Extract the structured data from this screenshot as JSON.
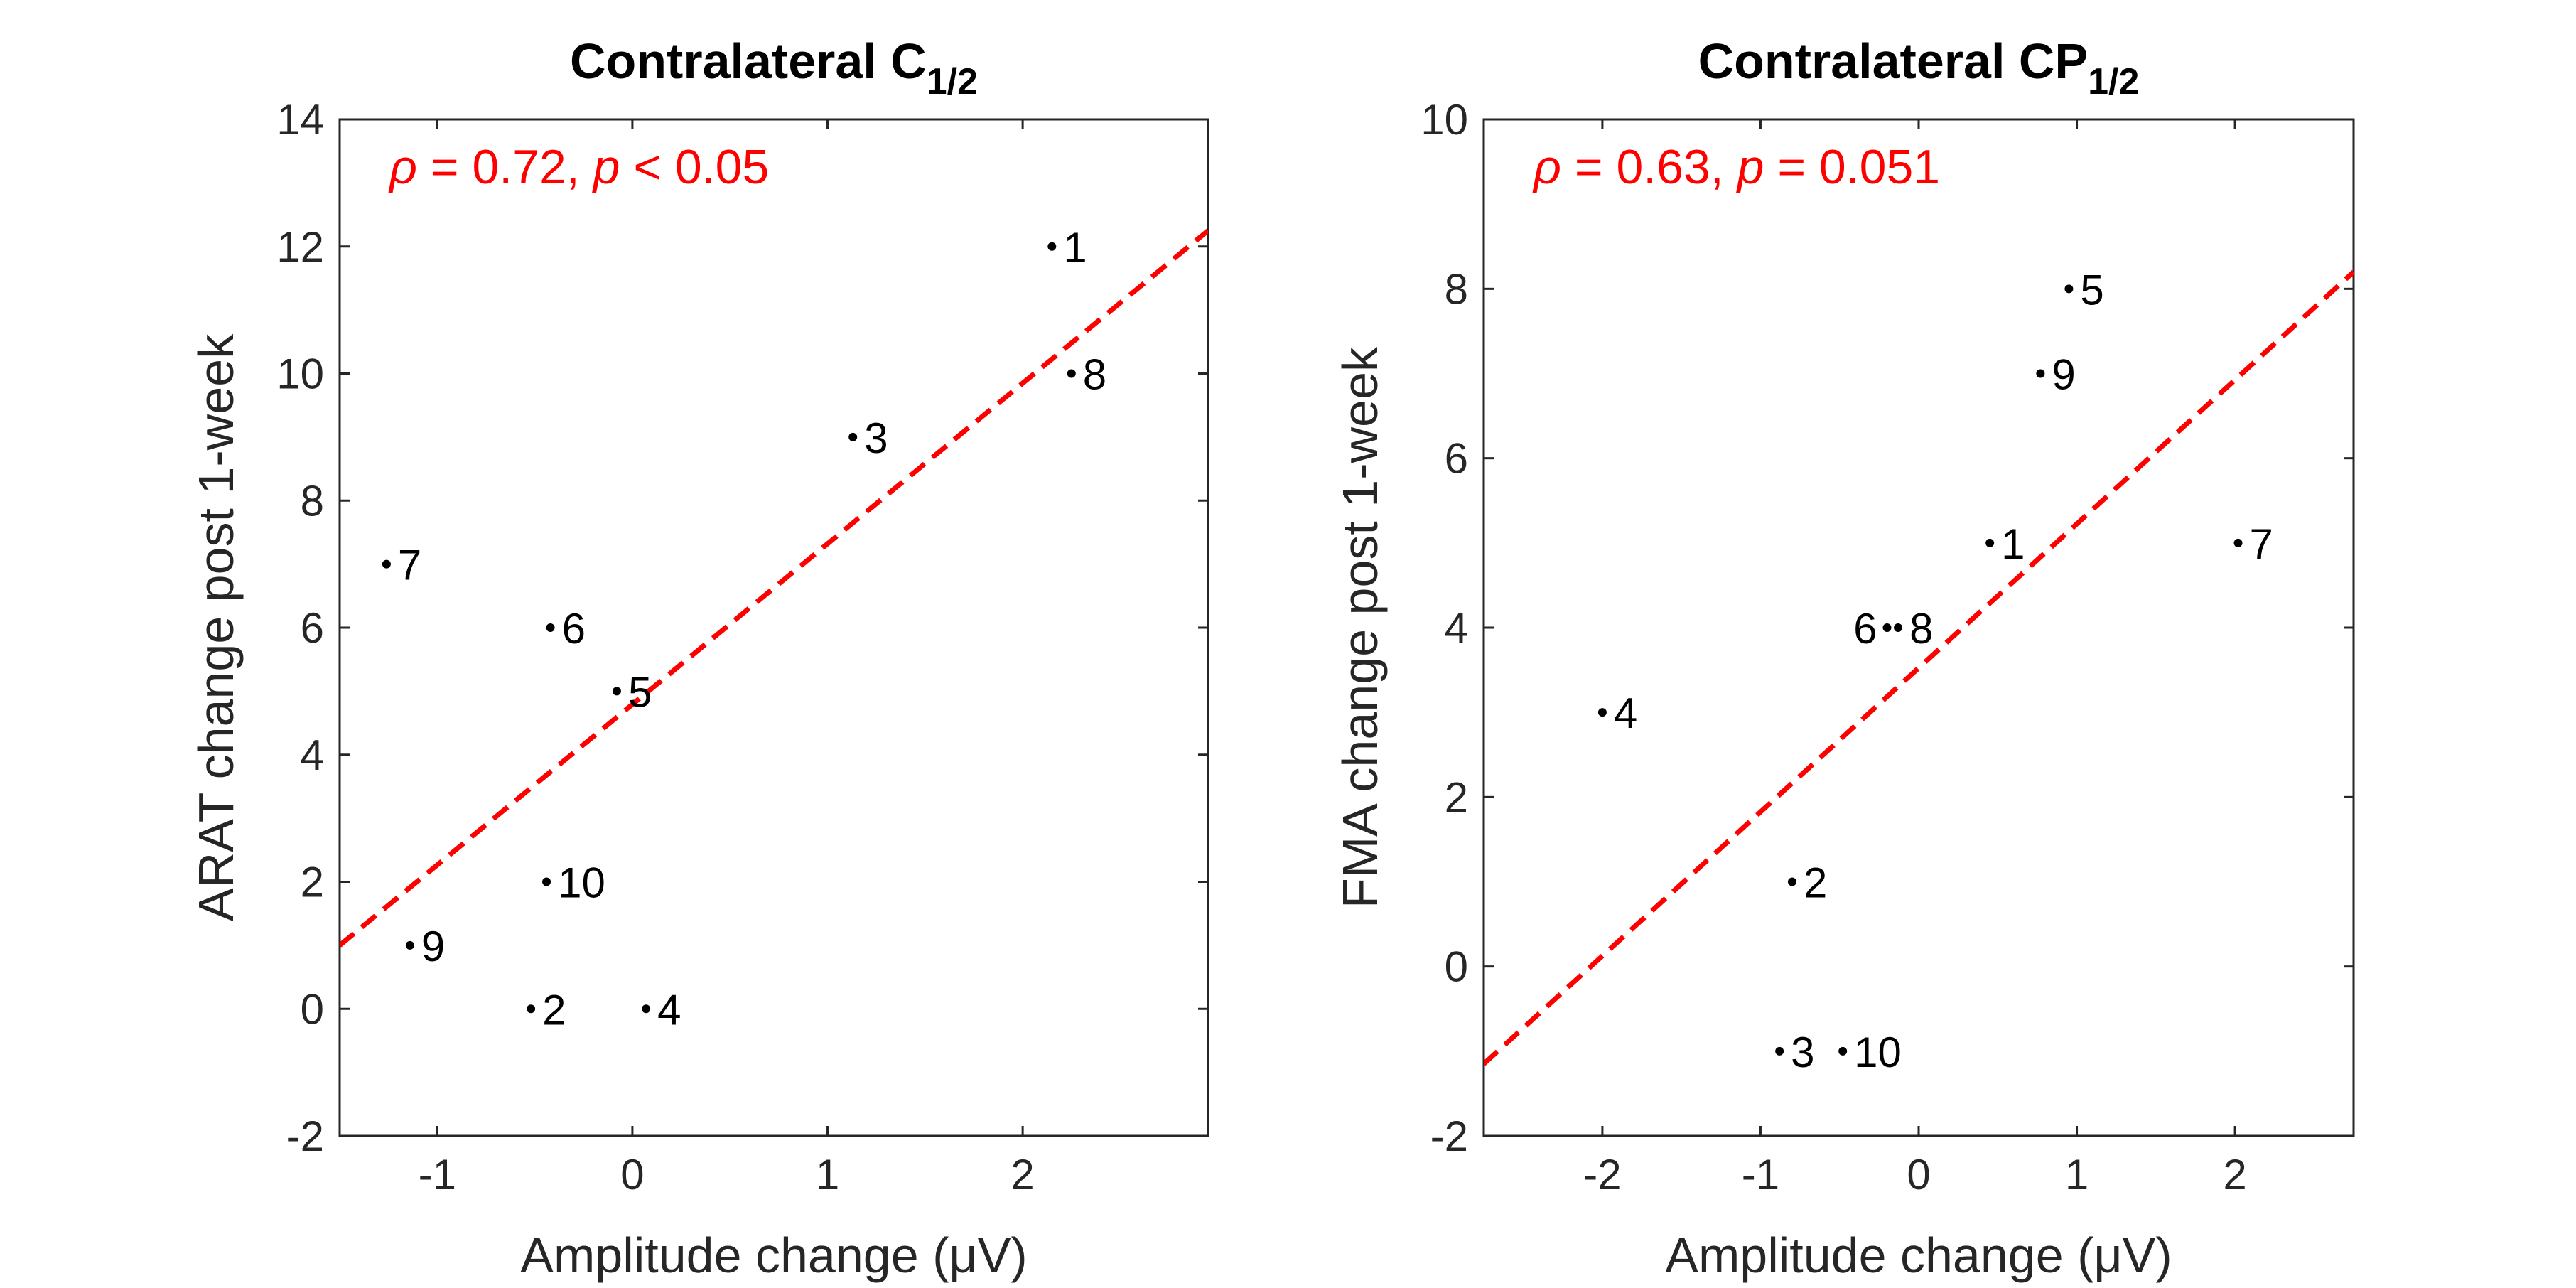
{
  "chart_data": [
    {
      "type": "scatter",
      "title": "Contralateral C",
      "title_subscript": "1/2",
      "xlabel": "Amplitude change (μV)",
      "ylabel": "ARAT change post 1-week",
      "xlim": [
        -1.5,
        2.95
      ],
      "ylim": [
        -2,
        14
      ],
      "xticks": [
        -1,
        0,
        1,
        2
      ],
      "yticks": [
        -2,
        0,
        2,
        4,
        6,
        8,
        10,
        12,
        14
      ],
      "grid": false,
      "annotation": {
        "text": "ρ = 0.72, p < 0.05",
        "parts": [
          {
            "t": "ρ",
            "italic": true
          },
          {
            "t": " = 0.72, ",
            "italic": false
          },
          {
            "t": "p",
            "italic": true
          },
          {
            "t": " < 0.05",
            "italic": false
          }
        ],
        "color": "#ff0000"
      },
      "points": [
        {
          "label": "1",
          "x": 2.15,
          "y": 12
        },
        {
          "label": "2",
          "x": -0.52,
          "y": 0
        },
        {
          "label": "3",
          "x": 1.13,
          "y": 9
        },
        {
          "label": "4",
          "x": 0.07,
          "y": 0
        },
        {
          "label": "5",
          "x": -0.08,
          "y": 5
        },
        {
          "label": "6",
          "x": -0.42,
          "y": 6
        },
        {
          "label": "7",
          "x": -1.26,
          "y": 7
        },
        {
          "label": "8",
          "x": 2.25,
          "y": 10
        },
        {
          "label": "9",
          "x": -1.14,
          "y": 1
        },
        {
          "label": "10",
          "x": -0.44,
          "y": 2
        }
      ],
      "fit_line": {
        "x": [
          -1.5,
          2.95
        ],
        "y": [
          1.0,
          12.25
        ],
        "color": "#ff0000",
        "style": "dashed"
      }
    },
    {
      "type": "scatter",
      "title": "Contralateral CP",
      "title_subscript": "1/2",
      "xlabel": "Amplitude change (μV)",
      "ylabel": "FMA change post 1-week",
      "xlim": [
        -2.75,
        2.75
      ],
      "ylim": [
        -2,
        10
      ],
      "xticks": [
        -2,
        -1,
        0,
        1,
        2
      ],
      "yticks": [
        -2,
        0,
        2,
        4,
        6,
        8,
        10
      ],
      "grid": false,
      "annotation": {
        "text": "ρ = 0.63, p = 0.051",
        "parts": [
          {
            "t": "ρ",
            "italic": true
          },
          {
            "t": " = 0.63, ",
            "italic": false
          },
          {
            "t": "p",
            "italic": true
          },
          {
            "t": " = 0.051",
            "italic": false
          }
        ],
        "color": "#ff0000"
      },
      "points": [
        {
          "label": "1",
          "x": 0.45,
          "y": 5,
          "anchor": "right"
        },
        {
          "label": "2",
          "x": -0.8,
          "y": 1,
          "anchor": "right"
        },
        {
          "label": "3",
          "x": -0.88,
          "y": -1,
          "anchor": "right"
        },
        {
          "label": "4",
          "x": -2.0,
          "y": 3,
          "anchor": "right"
        },
        {
          "label": "5",
          "x": 0.95,
          "y": 8,
          "anchor": "right"
        },
        {
          "label": "6",
          "x": -0.2,
          "y": 4,
          "anchor": "left"
        },
        {
          "label": "7",
          "x": 2.02,
          "y": 5,
          "anchor": "right"
        },
        {
          "label": "8",
          "x": -0.13,
          "y": 4,
          "anchor": "right"
        },
        {
          "label": "9",
          "x": 0.77,
          "y": 7,
          "anchor": "right"
        },
        {
          "label": "10",
          "x": -0.48,
          "y": -1,
          "anchor": "right"
        }
      ],
      "fit_line": {
        "x": [
          -2.75,
          2.75
        ],
        "y": [
          -1.15,
          8.2
        ],
        "color": "#ff0000",
        "style": "dashed"
      }
    }
  ]
}
